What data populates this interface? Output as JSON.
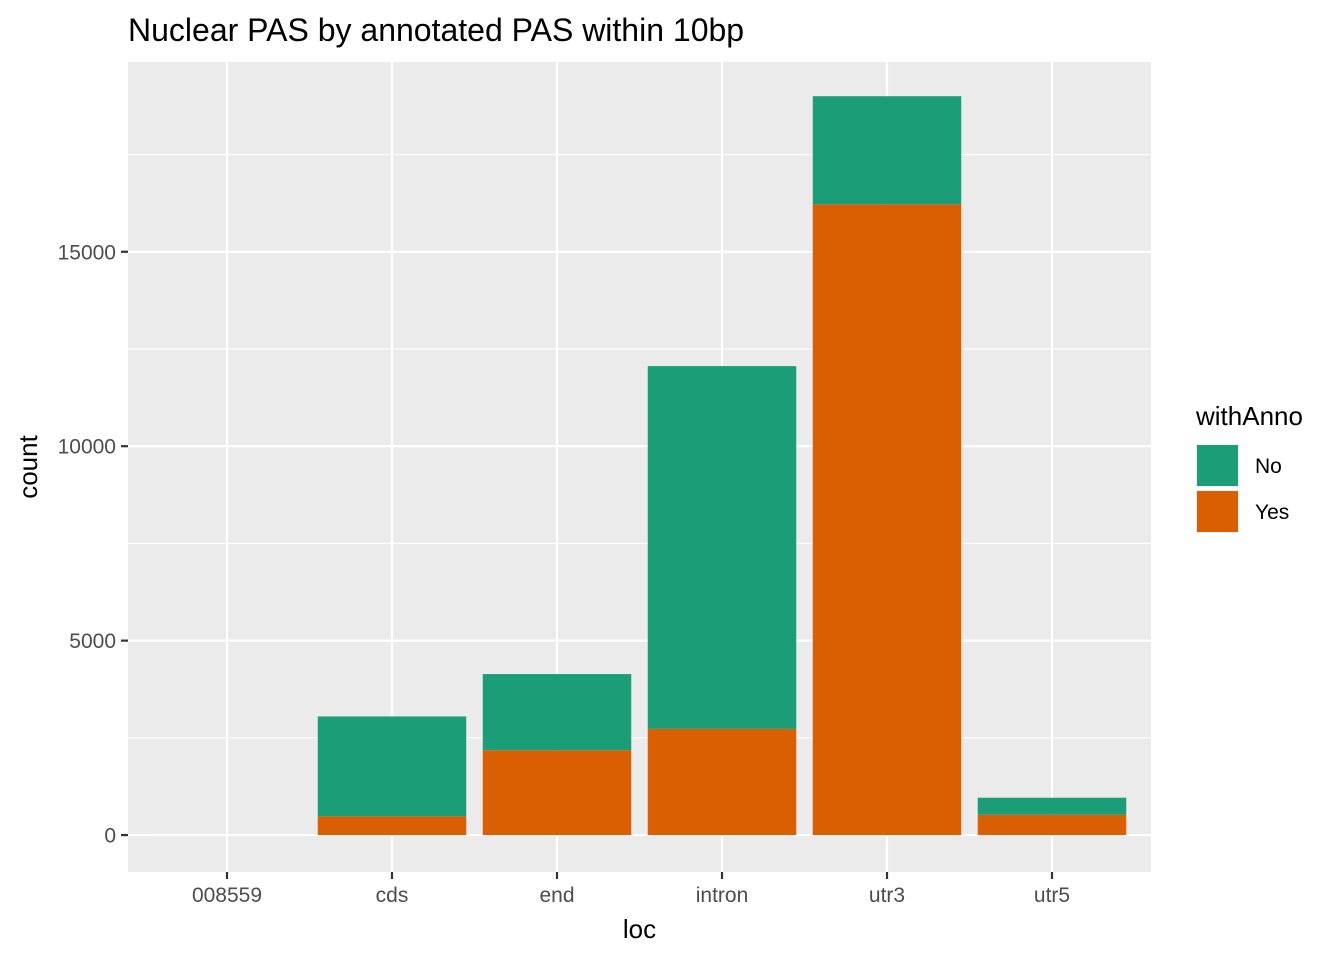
{
  "chart_data": {
    "type": "bar",
    "stacked": true,
    "title": "Nuclear PAS by annotated PAS within 10bp",
    "xlabel": "loc",
    "ylabel": "count",
    "categories": [
      "008559",
      "cds",
      "end",
      "intron",
      "utr3",
      "utr5"
    ],
    "series": [
      {
        "name": "Yes",
        "color": "#D95F02",
        "values": [
          0,
          480,
          2180,
          2730,
          16220,
          520
        ]
      },
      {
        "name": "No",
        "color": "#1B9E77",
        "values": [
          1,
          2570,
          1960,
          9330,
          2780,
          440
        ]
      }
    ],
    "ylim": [
      -950,
      19880
    ],
    "yticks": [
      0,
      5000,
      10000,
      15000
    ],
    "grid": true,
    "legend": {
      "title": "withAnno",
      "placement": "right",
      "entries": [
        "No",
        "Yes"
      ]
    }
  }
}
